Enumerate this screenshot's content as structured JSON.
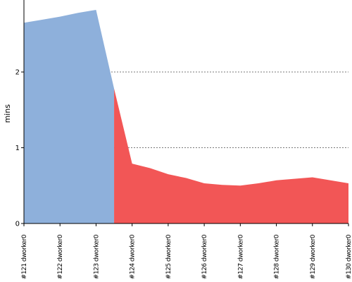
{
  "chart_data": {
    "type": "area",
    "title": "",
    "xlabel": "",
    "ylabel": "mins",
    "ylim": [
      0,
      2.95
    ],
    "yticks": [
      "0",
      "1",
      "2"
    ],
    "ytick_values": [
      0,
      1,
      2
    ],
    "grid": true,
    "categories": [
      "#121 dworker0",
      "#122 dworker0",
      "#123 dworker0",
      "#124 dworker0",
      "#125 dworker0",
      "#126 dworker0",
      "#127 dworker0",
      "#128 dworker0",
      "#129 dworker0",
      "#130 dworker0"
    ],
    "x": [
      0,
      0.5,
      1,
      1.5,
      2,
      2.5,
      3,
      3.5,
      4,
      4.5,
      5,
      5.5,
      6,
      6.5,
      7,
      7.5,
      8,
      8.5,
      9
    ],
    "series": [
      {
        "color": "#8eb0db",
        "x": [
          0,
          0.5,
          1,
          1.5,
          2,
          2.5
        ],
        "values": [
          2.65,
          2.69,
          2.73,
          2.78,
          2.82,
          1.78
        ]
      },
      {
        "color": "#f25656",
        "x": [
          2.5,
          3,
          3.5,
          4,
          4.5,
          5,
          5.5,
          6,
          6.5,
          7,
          7.5,
          8,
          8.5,
          9
        ],
        "values": [
          1.78,
          0.79,
          0.73,
          0.65,
          0.6,
          0.53,
          0.51,
          0.5,
          0.53,
          0.57,
          0.59,
          0.61,
          0.57,
          0.53
        ]
      }
    ]
  }
}
